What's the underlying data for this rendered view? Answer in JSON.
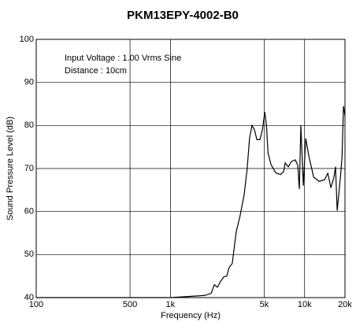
{
  "chart_data": {
    "type": "line",
    "title": "PKM13EPY-4002-B0",
    "annotations": [
      "Input Voltage : 1.00 Vrms Sine",
      "Distance : 10cm"
    ],
    "x_label": "Frequency (Hz)",
    "y_label": "Sound Pressure Level (dB)",
    "x_scale": "log",
    "grid": true,
    "xlim": [
      100,
      20000
    ],
    "ylim": [
      40,
      100
    ],
    "xticks": [
      100,
      500,
      {
        "value": 1000,
        "label": "1k"
      },
      {
        "value": 5000,
        "label": "5k"
      },
      {
        "value": 10000,
        "label": "10k"
      },
      {
        "value": 20000,
        "label": "20k"
      }
    ],
    "yticks": [
      40,
      50,
      60,
      70,
      80,
      90,
      100
    ],
    "series": [
      {
        "color": "#000000",
        "x": [
          100,
          500,
          1000,
          1806,
          2013,
          2124,
          2240,
          2360,
          2494,
          2630,
          2740,
          2890,
          3090,
          3300,
          3540,
          3730,
          3890,
          4060,
          4230,
          4410,
          4650,
          4850,
          5050,
          5200,
          5340,
          5620,
          6100,
          6620,
          6980,
          7170,
          7560,
          7970,
          8530,
          8900,
          9140,
          9380,
          9790,
          10200,
          10760,
          11680,
          12830,
          14100,
          14900,
          15700,
          16560,
          17000,
          17500,
          18500,
          19000,
          19500,
          20000
        ],
        "values": [
          40,
          40,
          40,
          40.5,
          41,
          43,
          42.4,
          43.7,
          44.8,
          45,
          47,
          47.9,
          55.2,
          58.9,
          63.8,
          69.8,
          77.1,
          80,
          79,
          76.7,
          76.7,
          79,
          83.1,
          80,
          73.6,
          70.9,
          69,
          68.6,
          69.3,
          71.3,
          70.4,
          71.6,
          72,
          70.7,
          65.2,
          80,
          66,
          77,
          72.9,
          68,
          67,
          67.4,
          68.9,
          65.5,
          68,
          70.4,
          60.2,
          68,
          72.5,
          84.5,
          82.2
        ]
      }
    ]
  }
}
